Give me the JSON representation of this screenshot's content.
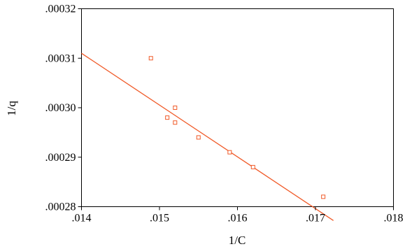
{
  "chart_data": {
    "type": "scatter",
    "title": "",
    "xlabel": "1/C",
    "ylabel": "1/q",
    "xlim": [
      0.014,
      0.018
    ],
    "ylim": [
      0.00028,
      0.00032
    ],
    "x_ticks": [
      0.014,
      0.015,
      0.016,
      0.017,
      0.018
    ],
    "x_tick_labels": [
      ".014",
      ".015",
      ".016",
      ".017",
      ".018"
    ],
    "y_ticks": [
      0.00028,
      0.00029,
      0.0003,
      0.00031,
      0.00032
    ],
    "y_tick_labels": [
      ".00028",
      ".00029",
      ".00030",
      ".00031",
      ".00032"
    ],
    "grid": false,
    "legend": "none",
    "series": [
      {
        "type": "scatter",
        "marker": "square-open",
        "color": "#f05a28",
        "points": [
          {
            "x": 0.01489,
            "y": 0.00031
          },
          {
            "x": 0.0151,
            "y": 0.000298
          },
          {
            "x": 0.0152,
            "y": 0.0003
          },
          {
            "x": 0.0152,
            "y": 0.000297
          },
          {
            "x": 0.0155,
            "y": 0.000294
          },
          {
            "x": 0.0159,
            "y": 0.000291
          },
          {
            "x": 0.0162,
            "y": 0.000288
          },
          {
            "x": 0.0171,
            "y": 0.000282
          }
        ]
      },
      {
        "type": "line",
        "fit": "linear",
        "color": "#f05a28",
        "points": [
          {
            "x": 0.014,
            "y": 0.000311
          },
          {
            "x": 0.01723,
            "y": 0.0002772
          }
        ]
      }
    ]
  }
}
